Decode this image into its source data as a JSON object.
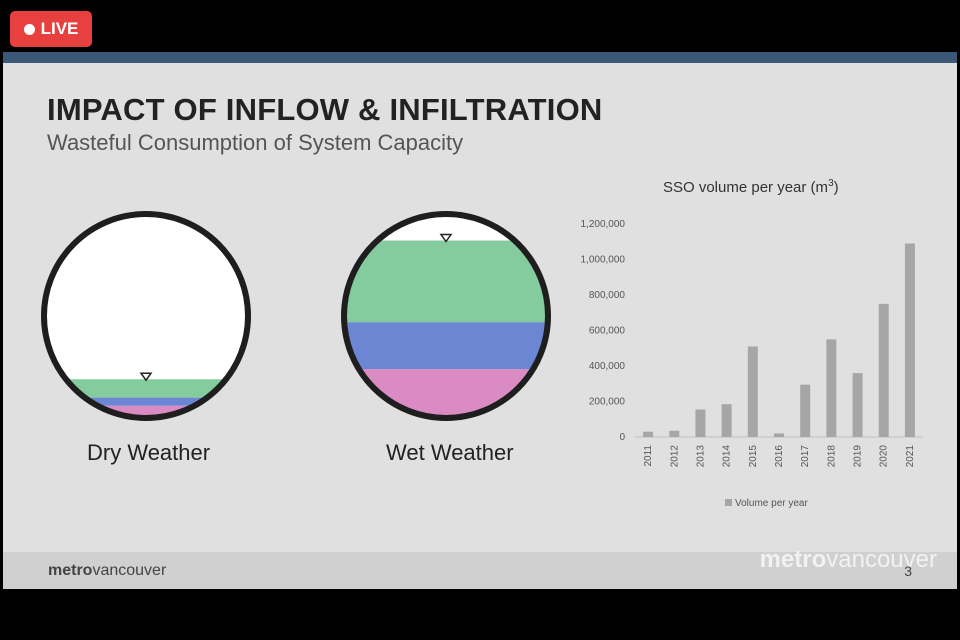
{
  "live_badge": "LIVE",
  "slide": {
    "title": "IMPACT OF INFLOW & INFILTRATION",
    "subtitle": "Wasteful Consumption of System Capacity",
    "page_number": "3",
    "footer_logo": {
      "bold": "metro",
      "light": "vancouver"
    },
    "watermark": {
      "bold": "metro",
      "light": "vancouver"
    }
  },
  "pipes": [
    {
      "label": "Dry Weather",
      "layers": [
        {
          "color": "#da8bc4",
          "fraction": 0.06
        },
        {
          "color": "#6c86d4",
          "fraction": 0.04
        },
        {
          "color": "#84cc9e",
          "fraction": 0.09
        }
      ]
    },
    {
      "label": "Wet Weather",
      "layers": [
        {
          "color": "#da8bc4",
          "fraction": 0.24
        },
        {
          "color": "#6c86d4",
          "fraction": 0.23
        },
        {
          "color": "#84cc9e",
          "fraction": 0.4
        }
      ]
    }
  ],
  "colors": {
    "pipe_ring": "#1e1e1e",
    "bar": "#a6a6a6",
    "axis": "#bfbfbf"
  },
  "chart_data": {
    "type": "bar",
    "title": "SSO volume per year (m",
    "title_superscript": "3",
    "title_close": ")",
    "categories": [
      "2011",
      "2012",
      "2013",
      "2014",
      "2015",
      "2016",
      "2017",
      "2018",
      "2019",
      "2020",
      "2021"
    ],
    "series": [
      {
        "name": "Volume per year",
        "values": [
          30000,
          35000,
          155000,
          185000,
          510000,
          20000,
          295000,
          550000,
          360000,
          750000,
          1090000
        ]
      }
    ],
    "ylim": [
      0,
      1200000
    ],
    "yticks": [
      0,
      200000,
      400000,
      600000,
      800000,
      1000000,
      1200000
    ],
    "ytick_labels": [
      "0",
      "200,000",
      "400,000",
      "600,000",
      "800,000",
      "1,000,000",
      "1,200,000"
    ],
    "grid": false,
    "legend_position": "bottom"
  }
}
